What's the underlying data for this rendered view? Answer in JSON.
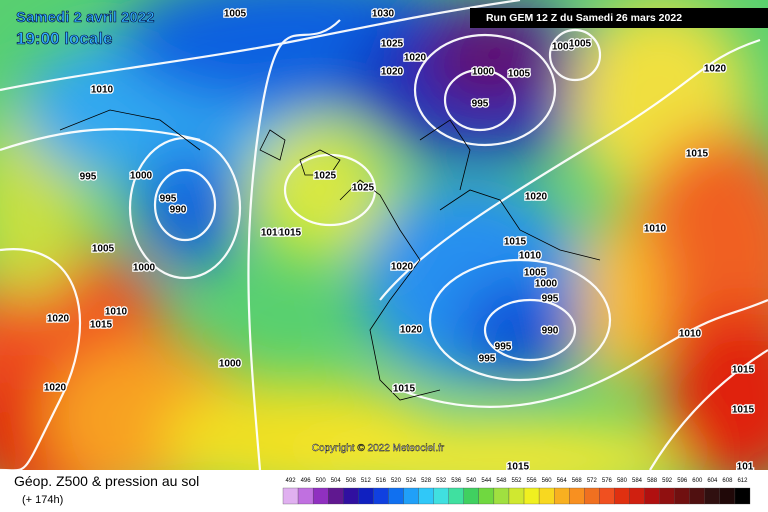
{
  "header": {
    "date": "Samedi 2 avril 2022",
    "time": "19:00 locale",
    "run": "Run GEM 12 Z du Samedi 26 mars 2022"
  },
  "copyright": "Copyright © 2022 Meteociel.fr",
  "footer": {
    "title": "Géop. Z500 & pression au sol",
    "lead": "(+ 174h)"
  },
  "legend": {
    "levels": [
      492,
      496,
      500,
      504,
      508,
      512,
      516,
      520,
      524,
      528,
      532,
      536,
      540,
      544,
      548,
      552,
      556,
      560,
      564,
      568,
      572,
      576,
      580,
      584,
      588,
      592,
      596,
      600,
      604,
      608,
      612
    ]
  },
  "isobar_labels": [
    "1005",
    "1030",
    "1025",
    "1020",
    "1020",
    "1000",
    "1005",
    "995",
    "1005",
    "1005",
    "1020",
    "1010",
    "995",
    "1000",
    "995",
    "990",
    "1025",
    "1025",
    "1020",
    "1015",
    "1010",
    "1010",
    "1015",
    "1005",
    "1000",
    "1020",
    "1015",
    "1010",
    "1005",
    "1000",
    "995",
    "1020",
    "1015",
    "1010",
    "1020",
    "990",
    "995",
    "995",
    "1000",
    "1010",
    "1015",
    "1015",
    "1020",
    "1015",
    "1015",
    "101"
  ]
}
